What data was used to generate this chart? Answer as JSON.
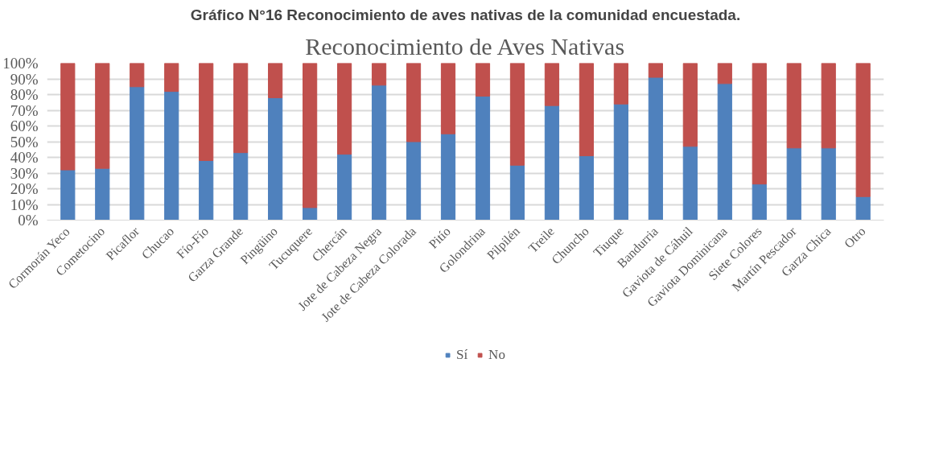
{
  "chart_data": {
    "type": "bar",
    "stacked": true,
    "annotations": [
      "Gráfico N°16 Reconocimiento de aves nativas de la comunidad encuestada."
    ],
    "title": "Reconocimiento de Aves Nativas",
    "categories": [
      "Cormorán Yeco",
      "Cometocino",
      "Picaflor",
      "Chucao",
      "Fío-Fío",
      "Garza Grande",
      "Pingüino",
      "Tucuquere",
      "Chercán",
      "Jote de Cabeza Negra",
      "Jote de Cabeza Colorada",
      "Pitío",
      "Golondrina",
      "Pilpilén",
      "Treile",
      "Chuncho",
      "Tiuque",
      "Bandurria",
      "Gaviota de Cáhuil",
      "Gaviota Dominicana",
      "Siete Colores",
      "Martín Pescador",
      "Garza Chica",
      "Otro"
    ],
    "series": [
      {
        "name": "Sí",
        "color": "#4f81bd",
        "values": [
          32,
          33,
          85,
          82,
          38,
          43,
          78,
          8,
          42,
          86,
          50,
          55,
          79,
          35,
          73,
          41,
          74,
          91,
          47,
          87,
          23,
          46,
          46,
          15
        ]
      },
      {
        "name": "No",
        "color": "#c0504d",
        "values": [
          68,
          67,
          15,
          18,
          62,
          57,
          22,
          92,
          58,
          14,
          50,
          45,
          21,
          65,
          27,
          59,
          26,
          9,
          53,
          13,
          77,
          54,
          54,
          85
        ]
      }
    ],
    "ylim": [
      0,
      100
    ],
    "yticks": [
      {
        "value": 0,
        "label": "0%"
      },
      {
        "value": 10,
        "label": "10%"
      },
      {
        "value": 20,
        "label": "20%"
      },
      {
        "value": 30,
        "label": "30%"
      },
      {
        "value": 40,
        "label": "40%"
      },
      {
        "value": 50,
        "label": "50%"
      },
      {
        "value": 60,
        "label": "60%"
      },
      {
        "value": 70,
        "label": "70%"
      },
      {
        "value": 80,
        "label": "80%"
      },
      {
        "value": 90,
        "label": "90%"
      },
      {
        "value": 100,
        "label": "100%"
      }
    ],
    "grid": "y",
    "legend": "bottom"
  }
}
